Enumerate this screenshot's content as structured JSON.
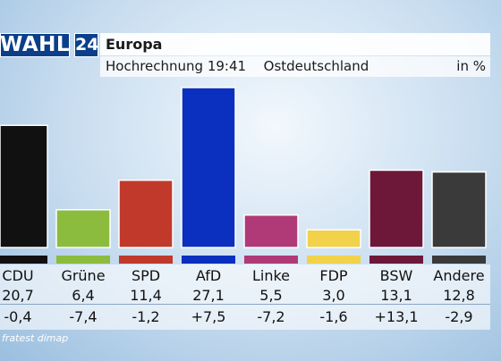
{
  "header": {
    "logo": "WAHL",
    "logo_number": "24",
    "title": "Europa",
    "subtitle": "Hochrechnung 19:41",
    "region": "Ostdeutschland",
    "unit": "in %"
  },
  "chart_data": {
    "type": "bar",
    "categories": [
      "CDU",
      "Grüne",
      "SPD",
      "AfD",
      "Linke",
      "FDP",
      "BSW",
      "Andere"
    ],
    "values": [
      20.7,
      6.4,
      11.4,
      27.1,
      5.5,
      3.0,
      13.1,
      12.8
    ],
    "value_labels": [
      "20,7",
      "6,4",
      "11,4",
      "27,1",
      "5,5",
      "3,0",
      "13,1",
      "12,8"
    ],
    "changes": [
      "-0,4",
      "-7,4",
      "-1,2",
      "+7,5",
      "-7,2",
      "-1,6",
      "+13,1",
      "-2,9"
    ],
    "colors": [
      "#111111",
      "#8cbc3e",
      "#c0392b",
      "#0b2fbf",
      "#b03a78",
      "#f1d24a",
      "#6e1839",
      "#3a3a3a"
    ],
    "ylim": [
      0,
      30
    ]
  },
  "source": "fratest dimap"
}
